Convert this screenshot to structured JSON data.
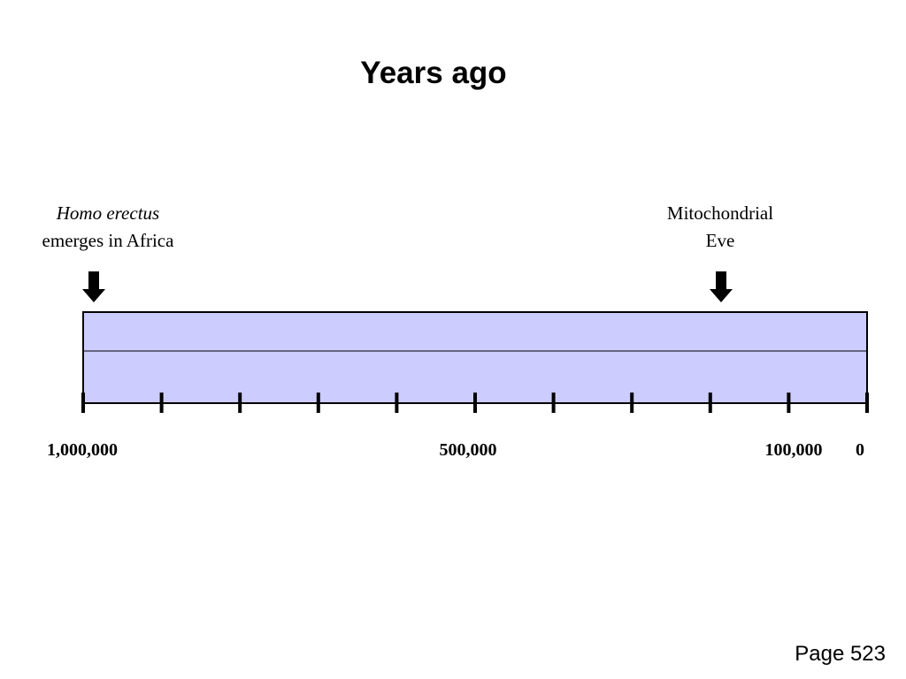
{
  "title": "Years ago",
  "events": [
    {
      "lines": [
        "Homo erectus",
        "emerges in Africa"
      ]
    },
    {
      "lines": [
        "Mitochondrial",
        "Eve"
      ]
    }
  ],
  "axis_labels": [
    "1,000,000",
    "500,000",
    "100,000",
    "0"
  ],
  "footer": "Page 523"
}
